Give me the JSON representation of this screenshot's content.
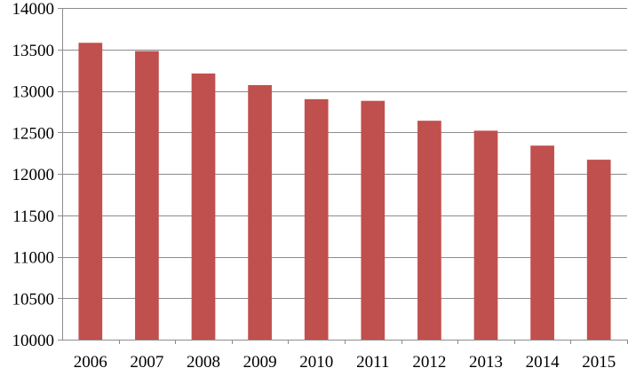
{
  "chart_data": {
    "type": "bar",
    "title": "",
    "xlabel": "",
    "ylabel": "",
    "categories": [
      "2006",
      "2007",
      "2008",
      "2009",
      "2010",
      "2011",
      "2012",
      "2013",
      "2014",
      "2015"
    ],
    "values": [
      13580,
      13480,
      13210,
      13070,
      12900,
      12880,
      12640,
      12520,
      12340,
      12170
    ],
    "ylim": [
      10000,
      14000
    ],
    "yticks": [
      10000,
      10500,
      11000,
      11500,
      12000,
      12500,
      13000,
      13500,
      14000
    ],
    "ytick_labels": [
      "10000",
      "10500",
      "11000",
      "11500",
      "12000",
      "12500",
      "13000",
      "13500",
      "14000"
    ],
    "grid": true,
    "legend": "none",
    "bar_color": "#c0504d"
  }
}
